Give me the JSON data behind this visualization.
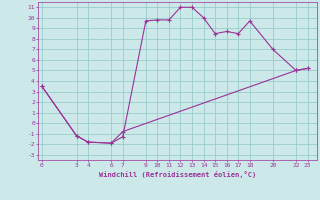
{
  "xlabel": "Windchill (Refroidissement éolien,°C)",
  "bg_color": "#cce8e8",
  "grid_color": "#99cccc",
  "line_color": "#993399",
  "line1_x": [
    0,
    3,
    4,
    6,
    7,
    9,
    10,
    11,
    12,
    13,
    14,
    15,
    16,
    17,
    18,
    20,
    22,
    23
  ],
  "line1_y": [
    3.5,
    -1.2,
    -1.8,
    -1.9,
    -1.3,
    9.7,
    9.8,
    9.8,
    11.0,
    11.0,
    10.0,
    8.5,
    8.7,
    8.5,
    9.7,
    7.0,
    5.0,
    5.2
  ],
  "line2_x": [
    0,
    3,
    4,
    6,
    7,
    22,
    23
  ],
  "line2_y": [
    3.5,
    -1.2,
    -1.8,
    -1.9,
    -0.8,
    5.0,
    5.2
  ],
  "yticks": [
    11,
    10,
    9,
    8,
    7,
    6,
    5,
    4,
    3,
    2,
    1,
    0,
    -1,
    -2,
    -3
  ],
  "xtick_labels": [
    "0",
    "3",
    "4",
    "6",
    "7",
    "9",
    "10",
    "11",
    "12",
    "13",
    "14",
    "15",
    "16",
    "17",
    "18",
    "20",
    "22",
    "23"
  ],
  "xtick_values": [
    0,
    3,
    4,
    6,
    7,
    9,
    10,
    11,
    12,
    13,
    14,
    15,
    16,
    17,
    18,
    20,
    22,
    23
  ],
  "xlim": [
    -0.3,
    23.8
  ],
  "ylim": [
    -3.5,
    11.5
  ]
}
